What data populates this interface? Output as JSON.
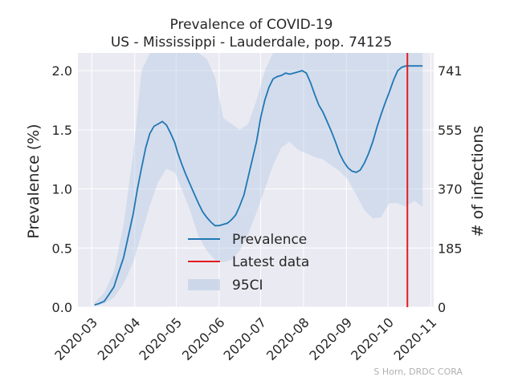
{
  "chart_data": {
    "type": "line",
    "title": "Prevalence of COVID-19",
    "subtitle": "US - Mississippi - Lauderdale, pop. 74125",
    "ylabel": "Prevalence (%)",
    "ylabel_right": "# of infections",
    "ylim": [
      0,
      2.15
    ],
    "y_ticks": [
      "0.0",
      "0.5",
      "1.0",
      "1.5",
      "2.0"
    ],
    "y_tick_values": [
      0,
      0.5,
      1.0,
      1.5,
      2.0
    ],
    "y2_ticks": [
      "0",
      "185",
      "370",
      "555",
      "741"
    ],
    "y2_tick_values": [
      0,
      0.25,
      0.5,
      0.75,
      1.0
    ],
    "xlim": [
      "2020-02-20",
      "2020-11-03"
    ],
    "x_ticks": [
      "2020-03",
      "2020-04",
      "2020-05",
      "2020-06",
      "2020-07",
      "2020-08",
      "2020-09",
      "2020-10",
      "2020-11"
    ],
    "x_tick_dates": [
      "2020-03-01",
      "2020-04-01",
      "2020-05-01",
      "2020-06-01",
      "2020-07-01",
      "2020-08-01",
      "2020-09-01",
      "2020-10-01",
      "2020-11-01"
    ],
    "grid": true,
    "legend_position": "lower-center",
    "colors": {
      "prevalence": "#1f77b4",
      "latest": "#e31a1c",
      "ci": "#b8cce4",
      "plot_bg": "#eaeaf2",
      "grid": "#ffffff"
    },
    "latest_data_date": "2020-10-15",
    "series": [
      {
        "name": "Prevalence",
        "x": [
          "2020-03-03",
          "2020-03-06",
          "2020-03-10",
          "2020-03-13",
          "2020-03-17",
          "2020-03-20",
          "2020-03-24",
          "2020-03-27",
          "2020-03-31",
          "2020-04-03",
          "2020-04-06",
          "2020-04-09",
          "2020-04-12",
          "2020-04-15",
          "2020-04-18",
          "2020-04-21",
          "2020-04-24",
          "2020-04-27",
          "2020-04-30",
          "2020-05-02",
          "2020-05-05",
          "2020-05-08",
          "2020-05-11",
          "2020-05-14",
          "2020-05-17",
          "2020-05-20",
          "2020-05-23",
          "2020-05-26",
          "2020-05-29",
          "2020-06-01",
          "2020-06-04",
          "2020-06-07",
          "2020-06-10",
          "2020-06-13",
          "2020-06-16",
          "2020-06-19",
          "2020-06-22",
          "2020-06-25",
          "2020-06-28",
          "2020-07-01",
          "2020-07-04",
          "2020-07-07",
          "2020-07-10",
          "2020-07-13",
          "2020-07-16",
          "2020-07-19",
          "2020-07-22",
          "2020-07-25",
          "2020-07-28",
          "2020-07-31",
          "2020-08-03",
          "2020-08-06",
          "2020-08-09",
          "2020-08-12",
          "2020-08-15",
          "2020-08-18",
          "2020-08-21",
          "2020-08-24",
          "2020-08-27",
          "2020-08-30",
          "2020-09-02",
          "2020-09-05",
          "2020-09-08",
          "2020-09-11",
          "2020-09-14",
          "2020-09-17",
          "2020-09-20",
          "2020-09-23",
          "2020-09-26",
          "2020-09-29",
          "2020-10-02",
          "2020-10-05",
          "2020-10-08",
          "2020-10-11",
          "2020-10-14",
          "2020-10-17",
          "2020-10-20",
          "2020-10-23",
          "2020-10-26"
        ],
        "values": [
          0.02,
          0.03,
          0.05,
          0.1,
          0.17,
          0.28,
          0.42,
          0.58,
          0.79,
          1.0,
          1.18,
          1.35,
          1.47,
          1.53,
          1.55,
          1.57,
          1.54,
          1.47,
          1.39,
          1.31,
          1.21,
          1.12,
          1.04,
          0.96,
          0.88,
          0.81,
          0.76,
          0.72,
          0.69,
          0.69,
          0.7,
          0.71,
          0.74,
          0.78,
          0.86,
          0.95,
          1.1,
          1.25,
          1.4,
          1.6,
          1.75,
          1.86,
          1.93,
          1.95,
          1.96,
          1.98,
          1.97,
          1.98,
          1.99,
          2.0,
          1.98,
          1.9,
          1.8,
          1.71,
          1.65,
          1.57,
          1.49,
          1.4,
          1.3,
          1.23,
          1.18,
          1.15,
          1.14,
          1.16,
          1.22,
          1.3,
          1.4,
          1.52,
          1.63,
          1.73,
          1.82,
          1.92,
          2.0,
          2.03,
          2.04,
          2.04,
          2.04,
          2.04,
          2.04
        ]
      },
      {
        "name": "95CI",
        "x": [
          "2020-03-03",
          "2020-03-10",
          "2020-03-17",
          "2020-03-24",
          "2020-03-31",
          "2020-04-06",
          "2020-04-12",
          "2020-04-18",
          "2020-04-24",
          "2020-04-30",
          "2020-05-05",
          "2020-05-11",
          "2020-05-17",
          "2020-05-23",
          "2020-05-29",
          "2020-06-04",
          "2020-06-10",
          "2020-06-16",
          "2020-06-22",
          "2020-06-28",
          "2020-07-04",
          "2020-07-10",
          "2020-07-16",
          "2020-07-22",
          "2020-07-28",
          "2020-08-03",
          "2020-08-09",
          "2020-08-15",
          "2020-08-21",
          "2020-08-27",
          "2020-09-02",
          "2020-09-08",
          "2020-09-14",
          "2020-09-20",
          "2020-09-26",
          "2020-10-02",
          "2020-10-08",
          "2020-10-14",
          "2020-10-20",
          "2020-10-26"
        ],
        "lower": [
          0.01,
          0.03,
          0.08,
          0.2,
          0.38,
          0.62,
          0.86,
          1.06,
          1.17,
          1.14,
          1.0,
          0.82,
          0.6,
          0.48,
          0.4,
          0.38,
          0.4,
          0.48,
          0.62,
          0.8,
          1.0,
          1.2,
          1.35,
          1.4,
          1.33,
          1.3,
          1.27,
          1.25,
          1.2,
          1.15,
          1.08,
          0.95,
          0.82,
          0.75,
          0.76,
          0.88,
          0.88,
          0.85,
          0.9,
          0.85
        ],
        "upper": [
          0.04,
          0.12,
          0.3,
          0.7,
          1.3,
          2.0,
          2.15,
          2.15,
          2.15,
          2.15,
          2.15,
          2.15,
          2.15,
          2.1,
          1.95,
          1.6,
          1.55,
          1.5,
          1.55,
          1.75,
          2.0,
          2.15,
          2.15,
          2.15,
          2.15,
          2.15,
          2.15,
          2.15,
          2.15,
          2.15,
          2.15,
          2.15,
          2.15,
          2.15,
          2.15,
          2.15,
          2.15,
          2.15,
          2.15,
          2.15
        ]
      }
    ],
    "legend": [
      "Prevalence",
      "Latest data",
      "95CI"
    ],
    "credit": "S Horn, DRDC CORA"
  }
}
